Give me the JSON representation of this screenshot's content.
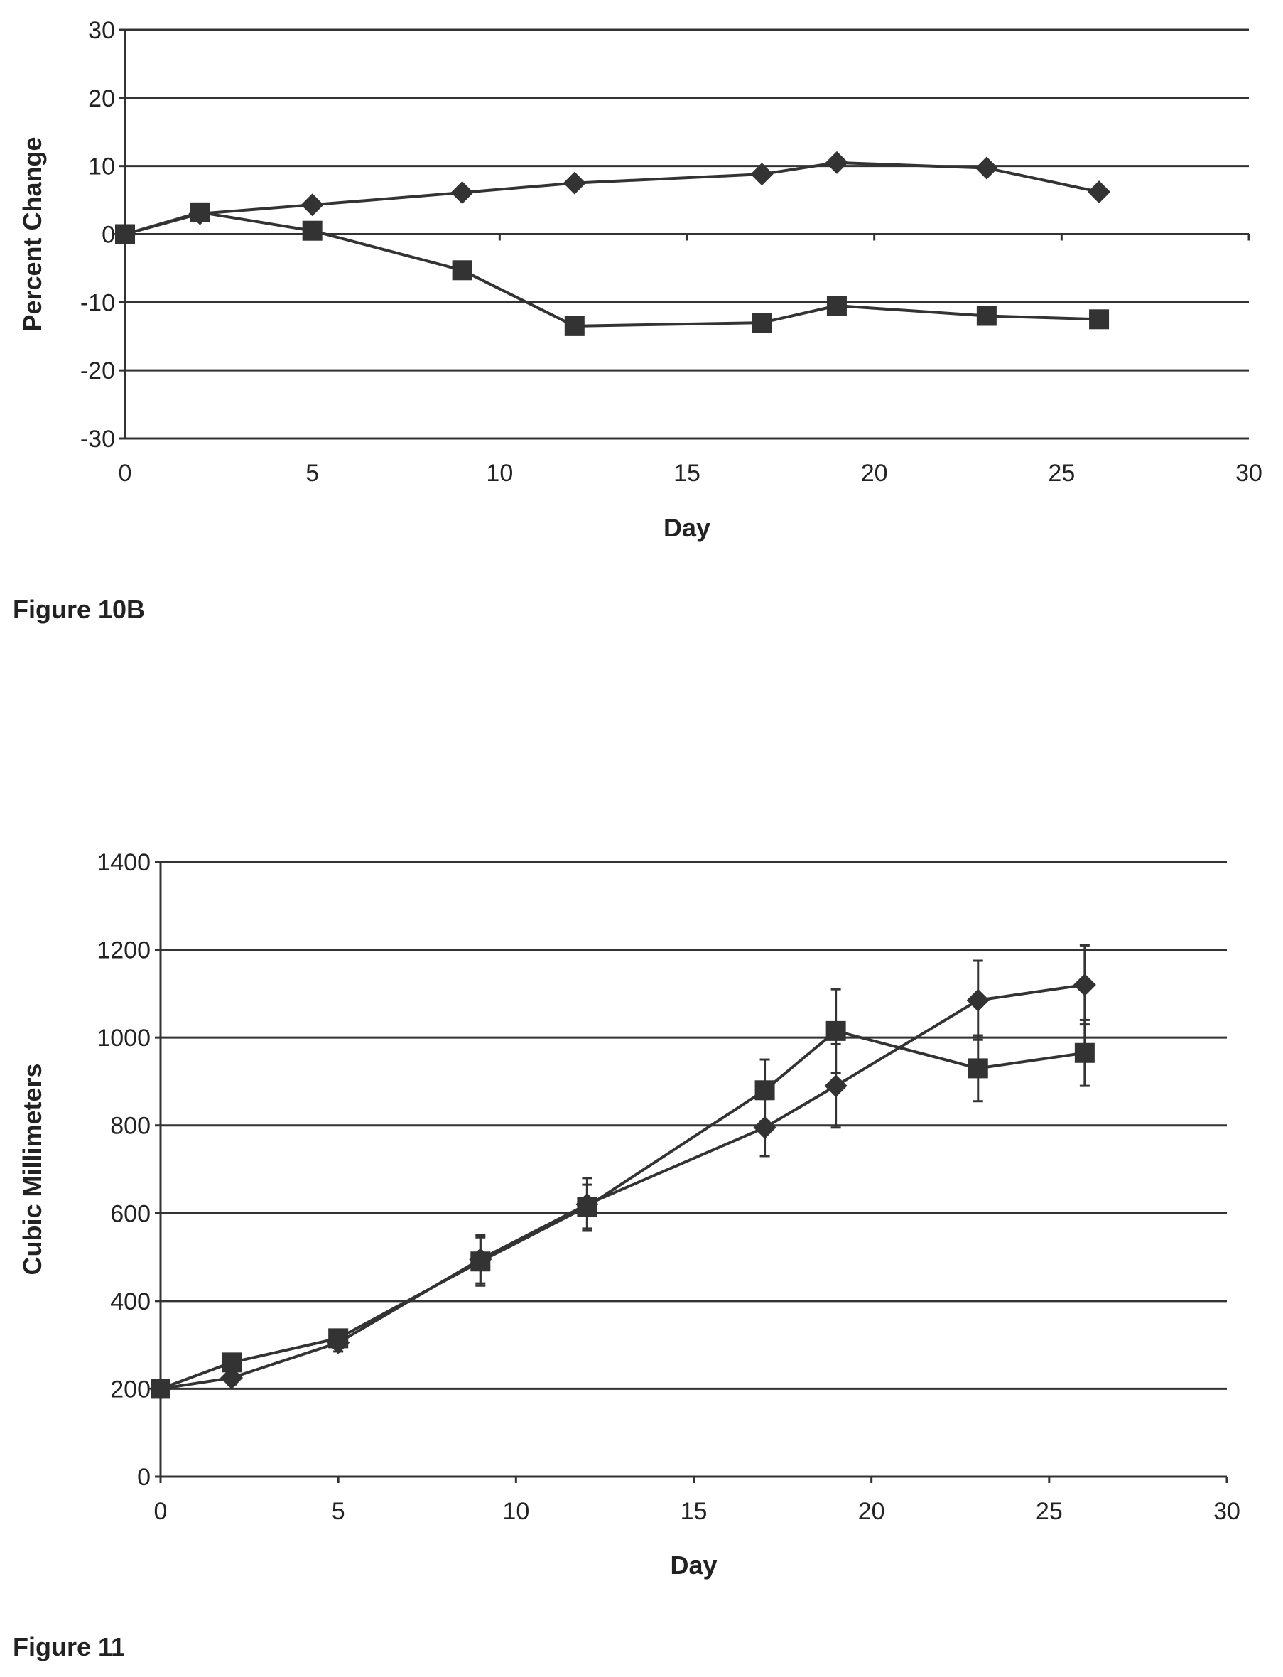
{
  "chart_data": [
    {
      "type": "line",
      "title": "",
      "caption": "Figure 10B",
      "xlabel": "Day",
      "ylabel": "Percent Change",
      "xlim": [
        0,
        30
      ],
      "ylim": [
        -30,
        30
      ],
      "xticks": [
        0,
        5,
        10,
        15,
        20,
        25,
        30
      ],
      "yticks": [
        -30,
        -20,
        -10,
        0,
        10,
        20,
        30
      ],
      "grid": true,
      "legend": "none",
      "series": [
        {
          "marker": "diamond",
          "points": [
            [
              0,
              0
            ],
            [
              2,
              3
            ],
            [
              5,
              4.3
            ],
            [
              9,
              6.1
            ],
            [
              12,
              7.5
            ],
            [
              17,
              8.8
            ],
            [
              19,
              10.5
            ],
            [
              23,
              9.7
            ],
            [
              26,
              6.2
            ]
          ]
        },
        {
          "marker": "square",
          "points": [
            [
              0,
              0
            ],
            [
              2,
              3.2
            ],
            [
              5,
              0.5
            ],
            [
              9,
              -5.3
            ],
            [
              12,
              -13.5
            ],
            [
              17,
              -13
            ],
            [
              19,
              -10.5
            ],
            [
              23,
              -12
            ],
            [
              26,
              -12.5
            ]
          ]
        }
      ]
    },
    {
      "type": "line",
      "title": "",
      "caption": "Figure 11",
      "xlabel": "Day",
      "ylabel": "Cubic Millimeters",
      "xlim": [
        0,
        30
      ],
      "ylim": [
        0,
        1400
      ],
      "xticks": [
        0,
        5,
        10,
        15,
        20,
        25,
        30
      ],
      "yticks": [
        0,
        200,
        400,
        600,
        800,
        1000,
        1200,
        1400
      ],
      "grid": true,
      "legend": "none",
      "series": [
        {
          "marker": "diamond",
          "points": [
            [
              0,
              200
            ],
            [
              2,
              225
            ],
            [
              5,
              305
            ],
            [
              9,
              495
            ],
            [
              12,
              620
            ],
            [
              17,
              795
            ],
            [
              19,
              890
            ],
            [
              23,
              1085
            ],
            [
              26,
              1120
            ]
          ],
          "errors": [
            0,
            15,
            20,
            55,
            60,
            65,
            95,
            90,
            90
          ]
        },
        {
          "marker": "square",
          "points": [
            [
              0,
              200
            ],
            [
              2,
              260
            ],
            [
              5,
              315
            ],
            [
              9,
              490
            ],
            [
              12,
              615
            ],
            [
              17,
              880
            ],
            [
              19,
              1015
            ],
            [
              23,
              930
            ],
            [
              26,
              965
            ]
          ],
          "errors": [
            0,
            15,
            20,
            55,
            50,
            70,
            95,
            75,
            75
          ]
        }
      ]
    }
  ]
}
